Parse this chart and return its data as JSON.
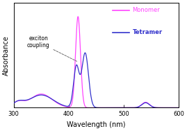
{
  "xlim": [
    300,
    600
  ],
  "xlabel": "Wavelength (nm)",
  "ylabel": "Absorbance",
  "monomer_color": "#FF44FF",
  "tetramer_color": "#3333CC",
  "monomer_label": "Monomer",
  "tetramer_label": "Tetramer",
  "annotation_text": "exciton\ncoupling",
  "bg_color": "#FFFFFF",
  "spine_color": "#000000",
  "xticks": [
    300,
    400,
    500,
    600
  ]
}
